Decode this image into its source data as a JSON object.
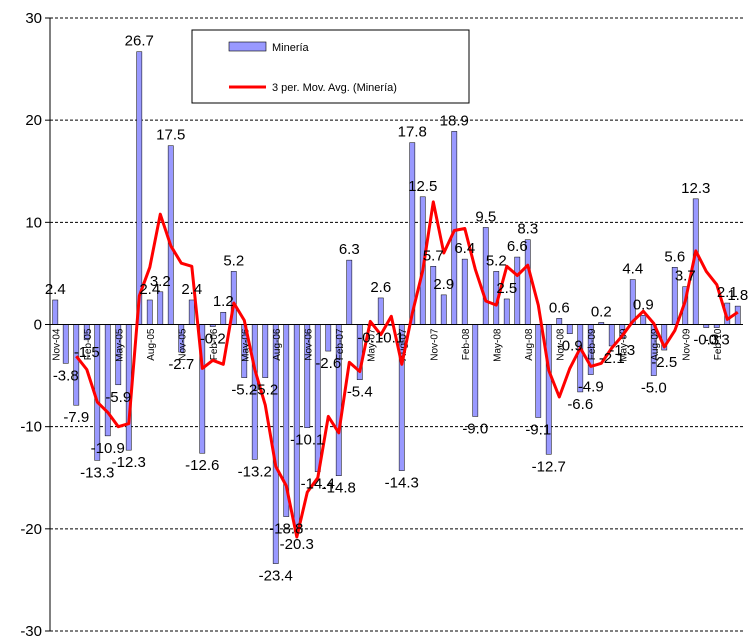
{
  "chart_data": {
    "type": "bar",
    "ylim": [
      -30,
      30
    ],
    "yticks": [
      -30,
      -20,
      -10,
      0,
      10,
      20,
      30
    ],
    "grid": true,
    "legend_position": "top-center",
    "x_start": "Nov-04",
    "x_tick_labels": [
      "Nov-04",
      "Feb-05",
      "May-05",
      "Aug-05",
      "Nov-05",
      "Feb-06",
      "May-06",
      "Aug-06",
      "Nov-06",
      "Feb-07",
      "May-07",
      "Aug-07",
      "Nov-07",
      "Feb-08",
      "May-08",
      "Aug-08",
      "Nov-08",
      "Feb-09",
      "May-09",
      "Aug-09",
      "Nov-09",
      "Feb-10"
    ],
    "series": [
      {
        "name": "Minería",
        "type": "bar",
        "color": "#9999ff",
        "values": [
          2.4,
          -3.8,
          -7.9,
          -1.5,
          -13.3,
          -10.9,
          -5.9,
          -12.3,
          26.7,
          2.4,
          3.2,
          17.5,
          -2.7,
          2.4,
          -12.6,
          -0.2,
          1.2,
          5.2,
          -5.2,
          -13.2,
          -5.2,
          -23.4,
          -18.8,
          -20.3,
          -10.1,
          -14.4,
          -2.6,
          -14.8,
          6.3,
          -5.4,
          -0.1,
          2.6,
          -0.1,
          -14.3,
          17.8,
          12.5,
          5.7,
          2.9,
          18.9,
          6.4,
          -9.0,
          9.5,
          5.2,
          2.5,
          6.6,
          8.3,
          -9.1,
          -12.7,
          0.6,
          -0.9,
          -6.6,
          -4.9,
          0.2,
          -2.1,
          -1.3,
          4.4,
          0.9,
          -5.0,
          -2.5,
          5.6,
          3.7,
          12.3,
          -0.3,
          -0.3,
          2.1,
          1.8
        ]
      },
      {
        "name": "3 per. Mov. Avg. (Minería)",
        "type": "line",
        "color": "#ff0000",
        "values": [
          null,
          null,
          -3.1,
          -4.4,
          -7.6,
          -8.6,
          -10.0,
          -9.7,
          2.8,
          5.6,
          10.8,
          7.7,
          6.0,
          5.7,
          -4.3,
          -3.5,
          -3.9,
          2.1,
          0.4,
          -4.4,
          -7.9,
          -13.9,
          -15.8,
          -20.8,
          -16.4,
          -15.0,
          -9.0,
          -10.6,
          -3.7,
          -4.6,
          0.3,
          -1.0,
          0.8,
          -3.9,
          1.1,
          5.3,
          12.0,
          7.0,
          9.2,
          9.4,
          5.4,
          2.3,
          1.9,
          5.7,
          4.8,
          5.8,
          1.9,
          -4.5,
          -7.1,
          -4.3,
          -2.3,
          -4.1,
          -3.8,
          -2.3,
          -1.1,
          0.3,
          1.3,
          0.1,
          -2.2,
          -0.6,
          2.3,
          7.2,
          5.2,
          3.9,
          0.5,
          1.2
        ]
      }
    ],
    "data_labels": [
      {
        "i": 0,
        "text": "2.4"
      },
      {
        "i": 1,
        "text": "-3.8"
      },
      {
        "i": 2,
        "text": "-7.9"
      },
      {
        "i": 3,
        "text": "-1.5"
      },
      {
        "i": 4,
        "text": "-13.3"
      },
      {
        "i": 5,
        "text": "-10.9"
      },
      {
        "i": 6,
        "text": "-5.9"
      },
      {
        "i": 7,
        "text": "-12.3"
      },
      {
        "i": 8,
        "text": "26.7"
      },
      {
        "i": 9,
        "text": "2.4"
      },
      {
        "i": 10,
        "text": "3.2"
      },
      {
        "i": 11,
        "text": "17.5"
      },
      {
        "i": 12,
        "text": "-2.7"
      },
      {
        "i": 13,
        "text": "2.4"
      },
      {
        "i": 14,
        "text": "-12.6"
      },
      {
        "i": 15,
        "text": "-0.2"
      },
      {
        "i": 16,
        "text": "1.2"
      },
      {
        "i": 17,
        "text": "5.2"
      },
      {
        "i": 18,
        "text": "-5.2"
      },
      {
        "i": 19,
        "text": "-13.2"
      },
      {
        "i": 20,
        "text": "-5.2"
      },
      {
        "i": 21,
        "text": "-23.4"
      },
      {
        "i": 22,
        "text": "-18.8"
      },
      {
        "i": 23,
        "text": "-20.3"
      },
      {
        "i": 24,
        "text": "-10.1"
      },
      {
        "i": 25,
        "text": "-14.4"
      },
      {
        "i": 26,
        "text": "-2.6"
      },
      {
        "i": 27,
        "text": "-14.8"
      },
      {
        "i": 28,
        "text": "6.3"
      },
      {
        "i": 29,
        "text": "-5.4"
      },
      {
        "i": 30,
        "text": "-0.1"
      },
      {
        "i": 31,
        "text": "2.6"
      },
      {
        "i": 32,
        "text": "-0.1"
      },
      {
        "i": 33,
        "text": "-14.3"
      },
      {
        "i": 34,
        "text": "17.8"
      },
      {
        "i": 35,
        "text": "12.5"
      },
      {
        "i": 36,
        "text": "5.7"
      },
      {
        "i": 37,
        "text": "2.9"
      },
      {
        "i": 38,
        "text": "18.9"
      },
      {
        "i": 39,
        "text": "6.4"
      },
      {
        "i": 40,
        "text": "-9.0"
      },
      {
        "i": 41,
        "text": "9.5"
      },
      {
        "i": 42,
        "text": "5.2"
      },
      {
        "i": 43,
        "text": "2.5"
      },
      {
        "i": 44,
        "text": "6.6"
      },
      {
        "i": 45,
        "text": "8.3"
      },
      {
        "i": 46,
        "text": "-9.1"
      },
      {
        "i": 47,
        "text": "-12.7"
      },
      {
        "i": 48,
        "text": "0.6"
      },
      {
        "i": 49,
        "text": "-0.9"
      },
      {
        "i": 50,
        "text": "-6.6"
      },
      {
        "i": 51,
        "text": "-4.9"
      },
      {
        "i": 52,
        "text": "0.2"
      },
      {
        "i": 53,
        "text": "-2.1"
      },
      {
        "i": 54,
        "text": "-1.3"
      },
      {
        "i": 55,
        "text": "4.4"
      },
      {
        "i": 56,
        "text": "0.9"
      },
      {
        "i": 57,
        "text": "-5.0"
      },
      {
        "i": 58,
        "text": "-2.5"
      },
      {
        "i": 59,
        "text": "5.6"
      },
      {
        "i": 60,
        "text": "3.7"
      },
      {
        "i": 61,
        "text": "12.3"
      },
      {
        "i": 62,
        "text": "-0.3"
      },
      {
        "i": 63,
        "text": "-0.3"
      },
      {
        "i": 64,
        "text": "2.1"
      },
      {
        "i": 65,
        "text": "1.8"
      }
    ]
  }
}
